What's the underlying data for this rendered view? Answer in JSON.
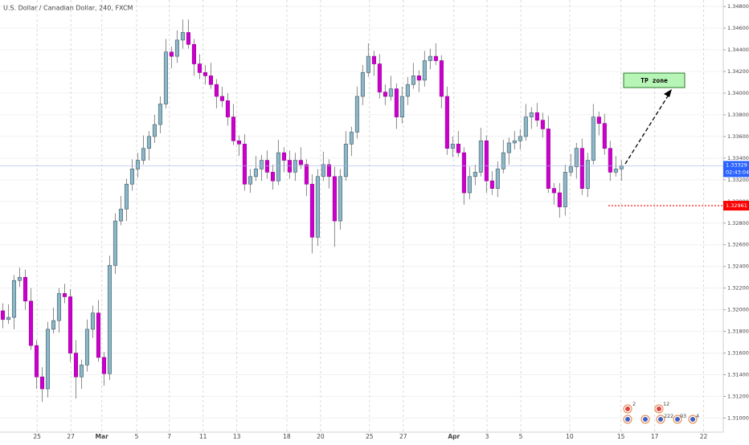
{
  "chart_data": {
    "type": "candlestick",
    "title": "U.S. Dollar / Canadian Dollar, 240, FXCM",
    "open": [
      1.3199,
      1.3191,
      1.3193,
      1.3227,
      1.323,
      1.3208,
      1.3167,
      1.3138,
      1.3127,
      1.3182,
      1.319,
      1.3215,
      1.3212,
      1.316,
      1.3138,
      1.3149,
      1.3182,
      1.3197,
      1.3156,
      1.3141,
      1.3241,
      1.3282,
      1.3293,
      1.3316,
      1.333,
      1.3338,
      1.3349,
      1.336,
      1.3371,
      1.339,
      1.3438,
      1.3434,
      1.3449,
      1.3456,
      1.3445,
      1.3427,
      1.3419,
      1.3416,
      1.3408,
      1.3397,
      1.3393,
      1.3378,
      1.3356,
      1.3353,
      1.3316,
      1.3323,
      1.333,
      1.3338,
      1.3327,
      1.3319,
      1.3345,
      1.3338,
      1.3327,
      1.3338,
      1.3334,
      1.3316,
      1.3267,
      1.3323,
      1.3334,
      1.3323,
      1.3282,
      1.3323,
      1.3353,
      1.3364,
      1.3397,
      1.3419,
      1.3434,
      1.3427,
      1.3401,
      1.3397,
      1.3404,
      1.3378,
      1.3397,
      1.3408,
      1.3416,
      1.3412,
      1.343,
      1.3434,
      1.343,
      1.3397,
      1.3349,
      1.3353,
      1.3345,
      1.3308,
      1.3323,
      1.3327,
      1.3356,
      1.3319,
      1.3312,
      1.333,
      1.3345,
      1.3354,
      1.3356,
      1.336,
      1.3378,
      1.3382,
      1.3375,
      1.3367,
      1.3312,
      1.3308,
      1.3295,
      1.3327,
      1.3332,
      1.3349,
      1.3312,
      1.3338,
      1.3378,
      1.3372,
      1.3349,
      1.3327,
      1.333
    ],
    "high": [
      1.3206,
      1.3205,
      1.3232,
      1.3239,
      1.3237,
      1.322,
      1.3172,
      1.3147,
      1.3189,
      1.3202,
      1.322,
      1.3224,
      1.3219,
      1.3172,
      1.3154,
      1.3191,
      1.3204,
      1.3209,
      1.3161,
      1.325,
      1.3289,
      1.3305,
      1.3321,
      1.3339,
      1.3345,
      1.3361,
      1.3365,
      1.338,
      1.3397,
      1.345,
      1.3443,
      1.3458,
      1.3468,
      1.3468,
      1.345,
      1.3436,
      1.3426,
      1.3428,
      1.3413,
      1.3406,
      1.34,
      1.339,
      1.3361,
      1.3362,
      1.333,
      1.3342,
      1.3343,
      1.3347,
      1.3334,
      1.3357,
      1.335,
      1.3347,
      1.3345,
      1.335,
      1.3339,
      1.3325,
      1.333,
      1.3346,
      1.3339,
      1.3332,
      1.333,
      1.3365,
      1.3369,
      1.3406,
      1.3426,
      1.3446,
      1.3439,
      1.3436,
      1.3408,
      1.3416,
      1.3409,
      1.3406,
      1.3415,
      1.3428,
      1.3421,
      1.3439,
      1.3441,
      1.3446,
      1.3435,
      1.3406,
      1.336,
      1.3365,
      1.335,
      1.3332,
      1.3334,
      1.3368,
      1.3361,
      1.3328,
      1.3337,
      1.3357,
      1.3359,
      1.3365,
      1.3367,
      1.339,
      1.3387,
      1.3391,
      1.3382,
      1.3379,
      1.3317,
      1.3317,
      1.3334,
      1.3344,
      1.3354,
      1.3358,
      1.3345,
      1.339,
      1.3383,
      1.3381,
      1.3356,
      1.3342,
      1.3338
    ],
    "low": [
      1.3183,
      1.3187,
      1.3182,
      1.3221,
      1.32,
      1.3163,
      1.3127,
      1.3115,
      1.3119,
      1.3178,
      1.3179,
      1.3206,
      1.3152,
      1.3118,
      1.3127,
      1.3143,
      1.3174,
      1.3152,
      1.313,
      1.3135,
      1.3233,
      1.3278,
      1.3282,
      1.331,
      1.3322,
      1.3334,
      1.3338,
      1.3354,
      1.3363,
      1.3386,
      1.3423,
      1.3428,
      1.3441,
      1.3441,
      1.3416,
      1.3413,
      1.3408,
      1.3404,
      1.3386,
      1.3387,
      1.337,
      1.3352,
      1.3342,
      1.331,
      1.3308,
      1.3319,
      1.3319,
      1.3321,
      1.3311,
      1.3315,
      1.3327,
      1.3321,
      1.3319,
      1.333,
      1.3305,
      1.3252,
      1.3259,
      1.3319,
      1.3312,
      1.3258,
      1.3274,
      1.3319,
      1.3342,
      1.3358,
      1.3389,
      1.3415,
      1.3416,
      1.3395,
      1.3389,
      1.3393,
      1.3367,
      1.3372,
      1.3389,
      1.3404,
      1.3401,
      1.3406,
      1.3422,
      1.3426,
      1.3386,
      1.3343,
      1.3341,
      1.3341,
      1.3297,
      1.3302,
      1.3315,
      1.3323,
      1.3308,
      1.3306,
      1.3304,
      1.3326,
      1.3334,
      1.3348,
      1.3348,
      1.3356,
      1.3367,
      1.3369,
      1.3359,
      1.3308,
      1.3297,
      1.3285,
      1.3287,
      1.3323,
      1.3321,
      1.3306,
      1.3304,
      1.3334,
      1.3361,
      1.3343,
      1.3319,
      1.3323,
      1.3319
    ],
    "close": [
      1.3191,
      1.3193,
      1.3227,
      1.323,
      1.3208,
      1.3167,
      1.3138,
      1.3127,
      1.3182,
      1.319,
      1.3215,
      1.3212,
      1.316,
      1.3138,
      1.3149,
      1.3182,
      1.3197,
      1.3156,
      1.3141,
      1.3241,
      1.3282,
      1.3293,
      1.3316,
      1.333,
      1.3338,
      1.3349,
      1.336,
      1.3371,
      1.339,
      1.3438,
      1.3434,
      1.3449,
      1.3456,
      1.3445,
      1.3427,
      1.3419,
      1.3416,
      1.3408,
      1.3397,
      1.3393,
      1.3378,
      1.3356,
      1.3353,
      1.3316,
      1.3323,
      1.333,
      1.3338,
      1.3327,
      1.3319,
      1.3345,
      1.3338,
      1.3327,
      1.3338,
      1.3334,
      1.3316,
      1.3267,
      1.3323,
      1.3334,
      1.3323,
      1.3282,
      1.3323,
      1.3353,
      1.3364,
      1.3397,
      1.3419,
      1.3434,
      1.3427,
      1.3401,
      1.3397,
      1.3404,
      1.3378,
      1.3397,
      1.3408,
      1.3416,
      1.3412,
      1.343,
      1.3434,
      1.343,
      1.3397,
      1.3349,
      1.3353,
      1.3345,
      1.3308,
      1.3323,
      1.3327,
      1.3356,
      1.3319,
      1.3312,
      1.333,
      1.3345,
      1.3354,
      1.3356,
      1.336,
      1.3378,
      1.3382,
      1.3375,
      1.3367,
      1.3312,
      1.3308,
      1.3295,
      1.3327,
      1.3332,
      1.3349,
      1.3312,
      1.3338,
      1.3378,
      1.3372,
      1.3349,
      1.3327,
      1.333,
      1.3333
    ],
    "up_color": "#8db6c6",
    "down_color": "#cc00cc",
    "xlim": [
      0,
      128.6
    ],
    "xticks": [
      {
        "value": 6.6,
        "label": "25"
      },
      {
        "value": 12.6,
        "label": "27"
      },
      {
        "value": 18.1,
        "label": "Mar"
      },
      {
        "value": 24.3,
        "label": "5"
      },
      {
        "value": 30.1,
        "label": "7"
      },
      {
        "value": 36.1,
        "label": "11"
      },
      {
        "value": 42.1,
        "label": "13"
      },
      {
        "value": 51,
        "label": "18"
      },
      {
        "value": 57,
        "label": "20"
      },
      {
        "value": 65.7,
        "label": "25"
      },
      {
        "value": 71.7,
        "label": "27"
      },
      {
        "value": 80.7,
        "label": "Apr"
      },
      {
        "value": 86.6,
        "label": "3"
      },
      {
        "value": 92.6,
        "label": "5"
      },
      {
        "value": 101.3,
        "label": "10"
      },
      {
        "value": 110.4,
        "label": "15"
      },
      {
        "value": 116.4,
        "label": "17"
      },
      {
        "value": 125.1,
        "label": "22"
      }
    ],
    "ylim": [
      1.3087,
      1.3486
    ],
    "yticks": [
      {
        "value": 1.31,
        "label": "1.31000"
      },
      {
        "value": 1.312,
        "label": "1.31200"
      },
      {
        "value": 1.314,
        "label": "1.31400"
      },
      {
        "value": 1.316,
        "label": "1.31600"
      },
      {
        "value": 1.318,
        "label": "1.31800"
      },
      {
        "value": 1.32,
        "label": "1.32000"
      },
      {
        "value": 1.322,
        "label": "1.32200"
      },
      {
        "value": 1.324,
        "label": "1.32400"
      },
      {
        "value": 1.326,
        "label": "1.32600"
      },
      {
        "value": 1.328,
        "label": "1.32800"
      },
      {
        "value": 1.33,
        "label": "1.33000"
      },
      {
        "value": 1.332,
        "label": "1.33200"
      },
      {
        "value": 1.334,
        "label": "1.33400"
      },
      {
        "value": 1.336,
        "label": "1.33600"
      },
      {
        "value": 1.338,
        "label": "1.33800"
      },
      {
        "value": 1.34,
        "label": "1.34000"
      },
      {
        "value": 1.342,
        "label": "1.34200"
      },
      {
        "value": 1.344,
        "label": "1.34400"
      },
      {
        "value": 1.346,
        "label": "1.34600"
      },
      {
        "value": 1.348,
        "label": "1.34800"
      }
    ],
    "current_price": {
      "value": 1.33329,
      "label": "1.33329",
      "countdown": "02:43:04",
      "color": "#2962ff"
    },
    "level": {
      "value": 1.32961,
      "label": "1.32961",
      "color": "#ff0000"
    },
    "annotations": [
      {
        "text": "TP zone"
      }
    ],
    "events": [
      "2",
      "12",
      "2",
      "2",
      "2",
      "9",
      "3",
      "4"
    ]
  }
}
